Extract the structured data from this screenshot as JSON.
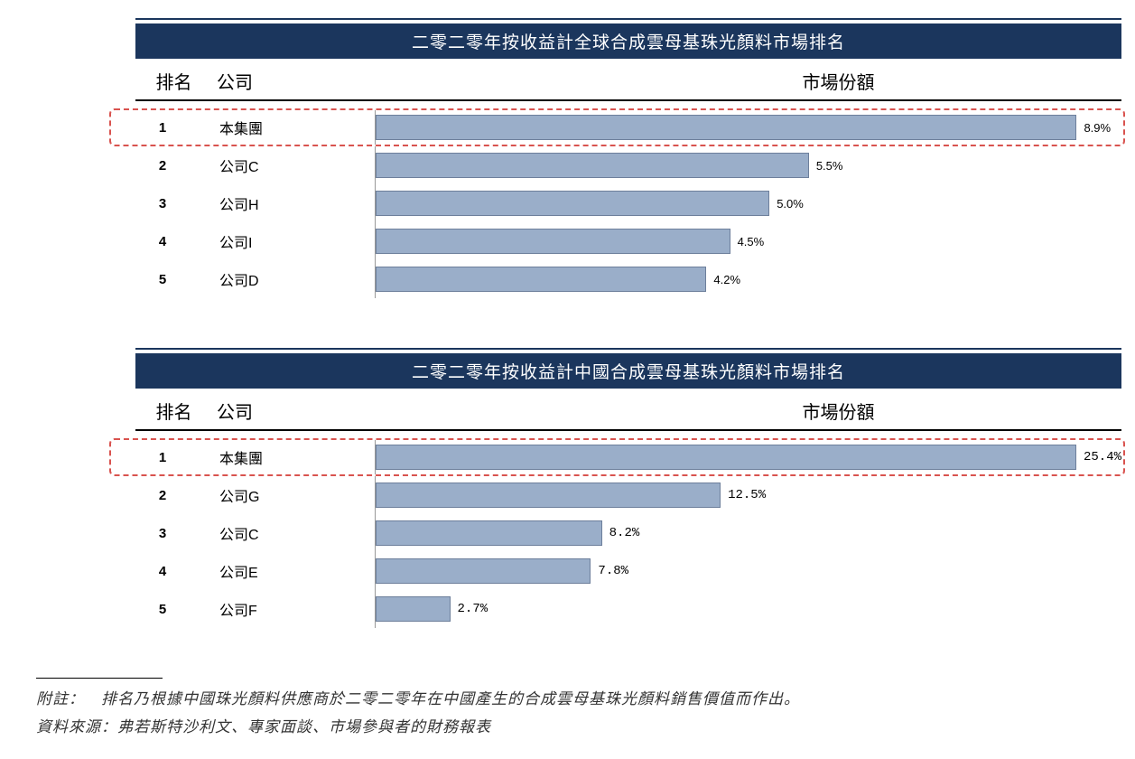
{
  "chart1": {
    "type": "bar-horizontal",
    "title": "二零二零年按收益計全球合成雲母基珠光顏料市場排名",
    "headers": {
      "rank": "排名",
      "company": "公司",
      "share": "市場份額"
    },
    "title_bg": "#1b365d",
    "title_color": "#ffffff",
    "bar_color": "#9aaec9",
    "bar_border": "#6d7f9b",
    "highlight_border": "#d9534f",
    "max_value": 8.9,
    "label_style": "percent",
    "rows": [
      {
        "rank": "1",
        "company": "本集團",
        "value": 8.9,
        "label": "8.9%",
        "highlighted": true
      },
      {
        "rank": "2",
        "company": "公司C",
        "value": 5.5,
        "label": "5.5%",
        "highlighted": false
      },
      {
        "rank": "3",
        "company": "公司H",
        "value": 5.0,
        "label": "5.0%",
        "highlighted": false
      },
      {
        "rank": "4",
        "company": "公司I",
        "value": 4.5,
        "label": "4.5%",
        "highlighted": false
      },
      {
        "rank": "5",
        "company": "公司D",
        "value": 4.2,
        "label": "4.2%",
        "highlighted": false
      }
    ]
  },
  "chart2": {
    "type": "bar-horizontal",
    "title": "二零二零年按收益計中國合成雲母基珠光顏料市場排名",
    "headers": {
      "rank": "排名",
      "company": "公司",
      "share": "市場份額"
    },
    "title_bg": "#1b365d",
    "title_color": "#ffffff",
    "bar_color": "#9aaec9",
    "bar_border": "#6d7f9b",
    "highlight_border": "#d9534f",
    "max_value": 25.4,
    "label_style": "mono",
    "rows": [
      {
        "rank": "1",
        "company": "本集團",
        "value": 25.4,
        "label": "25.4%",
        "highlighted": true
      },
      {
        "rank": "2",
        "company": "公司G",
        "value": 12.5,
        "label": "12.5%",
        "highlighted": false
      },
      {
        "rank": "3",
        "company": "公司C",
        "value": 8.2,
        "label": "8.2%",
        "highlighted": false
      },
      {
        "rank": "4",
        "company": "公司E",
        "value": 7.8,
        "label": "7.8%",
        "highlighted": false
      },
      {
        "rank": "5",
        "company": "公司F",
        "value": 2.7,
        "label": "2.7%",
        "highlighted": false
      }
    ]
  },
  "footnotes": {
    "line1": "附註：　排名乃根據中國珠光顏料供應商於二零二零年在中國產生的合成雲母基珠光顏料銷售價值而作出。",
    "line2": "資料來源：弗若斯特沙利文、專家面談、市場參與者的財務報表"
  }
}
